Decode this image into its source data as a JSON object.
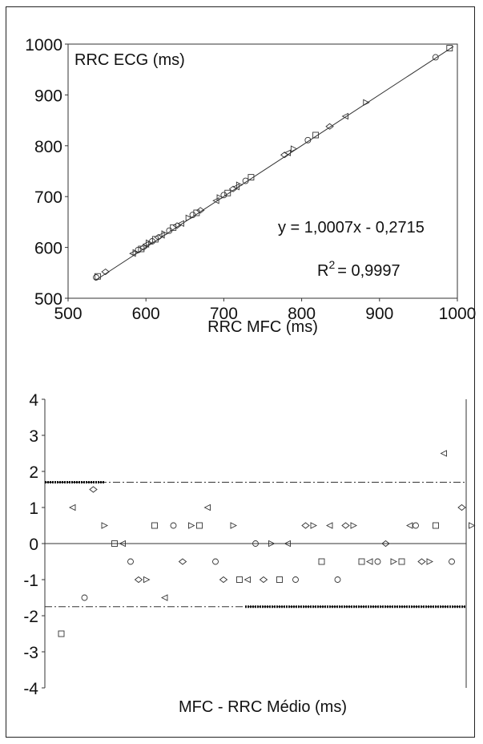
{
  "chart_data": [
    {
      "type": "scatter",
      "title": "",
      "xlabel": "RRC MFC (ms)",
      "ylabel": "RRC ECG (ms)",
      "xlim": [
        500,
        1000
      ],
      "ylim": [
        500,
        1000
      ],
      "xticks": [
        "500",
        "600",
        "700",
        "800",
        "900",
        "1000"
      ],
      "yticks": [
        "500",
        "600",
        "700",
        "800",
        "900",
        "1000"
      ],
      "regression_equation": "y = 1,0007x - 0,2715",
      "r2_prefix": "R",
      "r2_exp": "2",
      "r2_value": "= 0,9997",
      "fit": {
        "slope": 1.0007,
        "intercept": -0.2715
      },
      "grid": false,
      "points": [
        {
          "x": 536,
          "y": 541
        },
        {
          "x": 538,
          "y": 543
        },
        {
          "x": 548,
          "y": 552
        },
        {
          "x": 583,
          "y": 588
        },
        {
          "x": 587,
          "y": 590
        },
        {
          "x": 590,
          "y": 595
        },
        {
          "x": 594,
          "y": 597
        },
        {
          "x": 597,
          "y": 600
        },
        {
          "x": 600,
          "y": 606
        },
        {
          "x": 604,
          "y": 609
        },
        {
          "x": 608,
          "y": 612
        },
        {
          "x": 612,
          "y": 616
        },
        {
          "x": 616,
          "y": 620
        },
        {
          "x": 620,
          "y": 624
        },
        {
          "x": 624,
          "y": 627
        },
        {
          "x": 630,
          "y": 633
        },
        {
          "x": 635,
          "y": 639
        },
        {
          "x": 640,
          "y": 643
        },
        {
          "x": 645,
          "y": 647
        },
        {
          "x": 655,
          "y": 658
        },
        {
          "x": 660,
          "y": 664
        },
        {
          "x": 665,
          "y": 668
        },
        {
          "x": 670,
          "y": 673
        },
        {
          "x": 690,
          "y": 692
        },
        {
          "x": 695,
          "y": 698
        },
        {
          "x": 700,
          "y": 703
        },
        {
          "x": 705,
          "y": 707
        },
        {
          "x": 712,
          "y": 715
        },
        {
          "x": 716,
          "y": 719
        },
        {
          "x": 720,
          "y": 723
        },
        {
          "x": 728,
          "y": 731
        },
        {
          "x": 735,
          "y": 738
        },
        {
          "x": 778,
          "y": 782
        },
        {
          "x": 782,
          "y": 786
        },
        {
          "x": 790,
          "y": 794
        },
        {
          "x": 808,
          "y": 811
        },
        {
          "x": 818,
          "y": 821
        },
        {
          "x": 836,
          "y": 838
        },
        {
          "x": 856,
          "y": 858
        },
        {
          "x": 883,
          "y": 885
        },
        {
          "x": 972,
          "y": 974
        },
        {
          "x": 990,
          "y": 992
        }
      ]
    },
    {
      "type": "scatter",
      "title": "",
      "xlabel": "MFC - RRC Médio (ms)",
      "ylabel": "",
      "ylim": [
        -4,
        4
      ],
      "yticks": [
        "4",
        "3",
        "2",
        "1",
        "0",
        "-1",
        "-2",
        "-3",
        "-4"
      ],
      "mean_line": 0,
      "upper_limit": 1.7,
      "lower_limit": -1.75,
      "grid": false,
      "points": [
        {
          "x": 0.025,
          "y": -2.5
        },
        {
          "x": 0.053,
          "y": 1
        },
        {
          "x": 0.083,
          "y": -1.5
        },
        {
          "x": 0.105,
          "y": 1.5
        },
        {
          "x": 0.133,
          "y": 0.5
        },
        {
          "x": 0.158,
          "y": 0
        },
        {
          "x": 0.178,
          "y": 0
        },
        {
          "x": 0.198,
          "y": -0.5
        },
        {
          "x": 0.218,
          "y": -1
        },
        {
          "x": 0.238,
          "y": -1
        },
        {
          "x": 0.258,
          "y": 0.5
        },
        {
          "x": 0.283,
          "y": -1.5
        },
        {
          "x": 0.305,
          "y": 0.5
        },
        {
          "x": 0.328,
          "y": -0.5
        },
        {
          "x": 0.35,
          "y": 0.5
        },
        {
          "x": 0.37,
          "y": 0.5
        },
        {
          "x": 0.39,
          "y": 1
        },
        {
          "x": 0.41,
          "y": -0.5
        },
        {
          "x": 0.43,
          "y": -1
        },
        {
          "x": 0.455,
          "y": 0.5
        },
        {
          "x": 0.47,
          "y": -1
        },
        {
          "x": 0.49,
          "y": -1
        },
        {
          "x": 0.51,
          "y": 0
        },
        {
          "x": 0.53,
          "y": -1
        },
        {
          "x": 0.55,
          "y": 0
        },
        {
          "x": 0.57,
          "y": -1
        },
        {
          "x": 0.59,
          "y": 0
        },
        {
          "x": 0.61,
          "y": -1
        },
        {
          "x": 0.635,
          "y": 0.5
        },
        {
          "x": 0.655,
          "y": 0.5
        },
        {
          "x": 0.675,
          "y": -0.5
        },
        {
          "x": 0.695,
          "y": 0.5
        },
        {
          "x": 0.715,
          "y": -1
        },
        {
          "x": 0.735,
          "y": 0.5
        },
        {
          "x": 0.755,
          "y": 0.5
        },
        {
          "x": 0.775,
          "y": -0.5
        },
        {
          "x": 0.795,
          "y": -0.5
        },
        {
          "x": 0.815,
          "y": -0.5
        },
        {
          "x": 0.835,
          "y": 0
        },
        {
          "x": 0.855,
          "y": -0.5
        },
        {
          "x": 0.875,
          "y": -0.5
        },
        {
          "x": 0.895,
          "y": 0.5
        },
        {
          "x": 0.91,
          "y": 0.5
        },
        {
          "x": 0.925,
          "y": -0.5
        },
        {
          "x": 0.945,
          "y": -0.5
        },
        {
          "x": 0.96,
          "y": 0.5
        },
        {
          "x": 0.98,
          "y": 2.5
        },
        {
          "x": 1.0,
          "y": -0.5
        },
        {
          "x": 1.025,
          "y": 1
        },
        {
          "x": 1.05,
          "y": 0.5
        }
      ]
    }
  ]
}
